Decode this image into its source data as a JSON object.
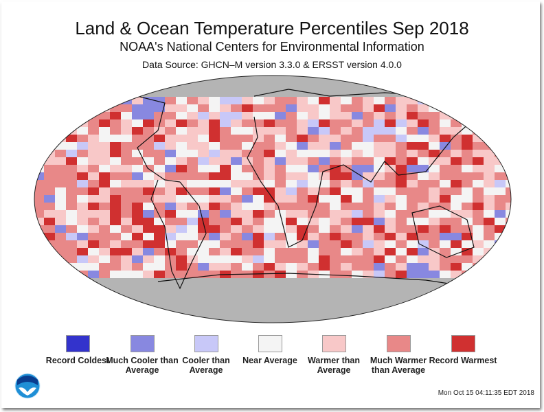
{
  "header": {
    "title": "Land & Ocean Temperature Percentiles Sep 2018",
    "subtitle": "NOAA's National Centers for Environmental Information",
    "source": "Data Source: GHCN–M version 3.3.0 & ERSST version 4.0.0"
  },
  "map": {
    "projection": "Robinson",
    "no_data_color": "#b4b4b4"
  },
  "legend": [
    {
      "label": "Record Coldest",
      "color": "#3333cc"
    },
    {
      "label": "Much Cooler than Average",
      "color": "#8888e0"
    },
    {
      "label": "Cooler than Average",
      "color": "#c8c8f8"
    },
    {
      "label": "Near Average",
      "color": "#f4f4f4"
    },
    {
      "label": "Warmer than Average",
      "color": "#f8c8c8"
    },
    {
      "label": "Much Warmer than Average",
      "color": "#e88888"
    },
    {
      "label": "Record Warmest",
      "color": "#d03030"
    }
  ],
  "footer": {
    "timestamp": "Mon Oct 15 04:11:35 EDT 2018",
    "logo": "NOAA"
  }
}
